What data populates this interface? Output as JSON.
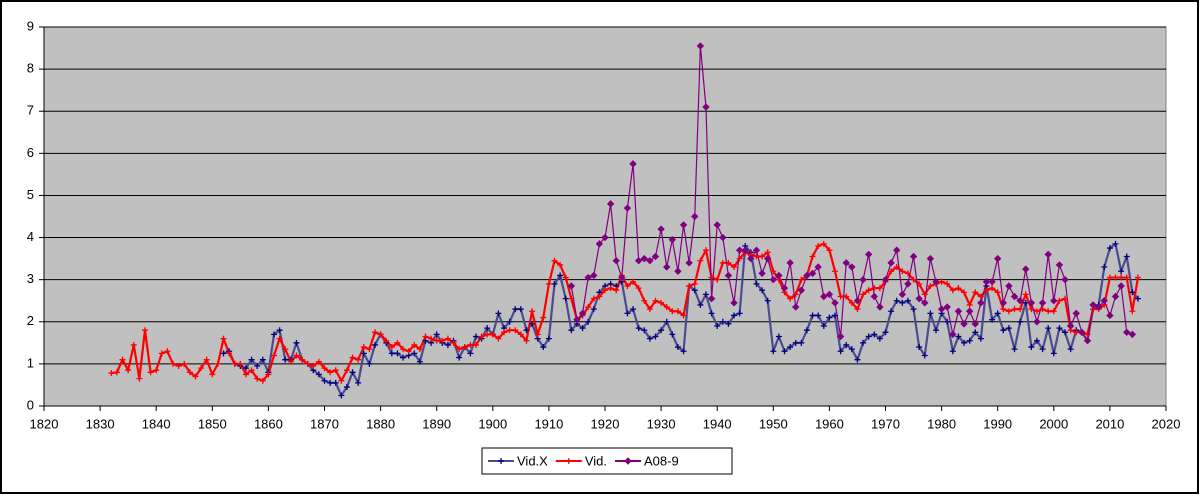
{
  "chart_data": {
    "type": "line",
    "xlim": [
      1820,
      2020
    ],
    "xticks": [
      1820,
      1830,
      1840,
      1850,
      1860,
      1870,
      1880,
      1890,
      1900,
      1910,
      1920,
      1930,
      1940,
      1950,
      1960,
      1970,
      1980,
      1990,
      2000,
      2010,
      2020
    ],
    "ylim": [
      0,
      9
    ],
    "yticks": [
      0,
      1,
      2,
      3,
      4,
      5,
      6,
      7,
      8,
      9
    ],
    "grid": true,
    "legend": "bottom",
    "series": [
      {
        "name": "Vid.X",
        "color": "#4b4b8f",
        "marker_color": "#000080",
        "marker": "plus",
        "x": [
          1852,
          1853,
          1854,
          1855,
          1856,
          1857,
          1858,
          1859,
          1860,
          1861,
          1862,
          1863,
          1864,
          1865,
          1866,
          1867,
          1868,
          1869,
          1870,
          1871,
          1872,
          1873,
          1874,
          1875,
          1876,
          1877,
          1878,
          1879,
          1880,
          1881,
          1882,
          1883,
          1884,
          1885,
          1886,
          1887,
          1888,
          1889,
          1890,
          1891,
          1892,
          1893,
          1894,
          1895,
          1896,
          1897,
          1898,
          1899,
          1900,
          1901,
          1902,
          1903,
          1904,
          1905,
          1906,
          1907,
          1908,
          1909,
          1910,
          1911,
          1912,
          1913,
          1914,
          1915,
          1916,
          1917,
          1918,
          1919,
          1920,
          1921,
          1922,
          1923,
          1924,
          1925,
          1926,
          1927,
          1928,
          1929,
          1930,
          1931,
          1932,
          1933,
          1934,
          1935,
          1936,
          1937,
          1938,
          1939,
          1940,
          1941,
          1942,
          1943,
          1944,
          1945,
          1946,
          1947,
          1948,
          1949,
          1950,
          1951,
          1952,
          1953,
          1954,
          1955,
          1956,
          1957,
          1958,
          1959,
          1960,
          1961,
          1962,
          1963,
          1964,
          1965,
          1966,
          1967,
          1968,
          1969,
          1970,
          1971,
          1972,
          1973,
          1974,
          1975,
          1976,
          1977,
          1978,
          1979,
          1980,
          1981,
          1982,
          1983,
          1984,
          1985,
          1986,
          1987,
          1988,
          1989,
          1990,
          1991,
          1992,
          1993,
          1994,
          1995,
          1996,
          1997,
          1998,
          1999,
          2000,
          2001,
          2002,
          2003,
          2004,
          2005,
          2006,
          2007,
          2008,
          2009,
          2010,
          2011,
          2012,
          2013,
          2014,
          2015
        ],
        "values": [
          1.25,
          1.3,
          1.0,
          0.95,
          0.9,
          1.1,
          0.95,
          1.1,
          0.8,
          1.7,
          1.8,
          1.1,
          1.1,
          1.5,
          1.1,
          1.0,
          0.85,
          0.75,
          0.6,
          0.55,
          0.55,
          0.25,
          0.45,
          0.8,
          0.55,
          1.25,
          1.0,
          1.45,
          1.7,
          1.5,
          1.25,
          1.25,
          1.15,
          1.2,
          1.25,
          1.05,
          1.55,
          1.5,
          1.7,
          1.5,
          1.45,
          1.55,
          1.15,
          1.4,
          1.25,
          1.65,
          1.6,
          1.85,
          1.7,
          2.2,
          1.85,
          2.0,
          2.3,
          2.3,
          1.8,
          1.95,
          1.6,
          1.4,
          1.6,
          2.9,
          3.1,
          2.55,
          1.8,
          1.95,
          1.85,
          2.0,
          2.3,
          2.7,
          2.85,
          2.9,
          2.85,
          2.95,
          2.2,
          2.3,
          1.85,
          1.8,
          1.6,
          1.65,
          1.8,
          2.0,
          1.7,
          1.4,
          1.3,
          2.85,
          2.75,
          2.4,
          2.65,
          2.2,
          1.9,
          2.0,
          1.95,
          2.15,
          2.2,
          3.8,
          3.65,
          2.9,
          2.75,
          2.5,
          1.3,
          1.65,
          1.3,
          1.4,
          1.5,
          1.5,
          1.8,
          2.15,
          2.15,
          1.9,
          2.1,
          2.15,
          1.3,
          1.45,
          1.35,
          1.1,
          1.5,
          1.65,
          1.7,
          1.6,
          1.75,
          2.25,
          2.5,
          2.45,
          2.5,
          2.3,
          1.4,
          1.2,
          2.2,
          1.8,
          2.2,
          2.0,
          1.3,
          1.65,
          1.5,
          1.55,
          1.75,
          1.6,
          2.85,
          2.05,
          2.2,
          1.8,
          1.85,
          1.35,
          2.0,
          2.45,
          1.4,
          1.55,
          1.35,
          1.85,
          1.25,
          1.85,
          1.75,
          1.35,
          1.8,
          1.75,
          1.55,
          2.3,
          2.4,
          3.3,
          3.75,
          3.85,
          3.2,
          3.55,
          2.7,
          2.55
        ]
      },
      {
        "name": "Vid.",
        "color": "#ff0000",
        "marker_color": "#ff0000",
        "marker": "plus",
        "x": [
          1832,
          1833,
          1834,
          1835,
          1836,
          1837,
          1838,
          1839,
          1840,
          1841,
          1842,
          1843,
          1844,
          1845,
          1846,
          1847,
          1848,
          1849,
          1850,
          1851,
          1852,
          1853,
          1854,
          1855,
          1856,
          1857,
          1858,
          1859,
          1860,
          1861,
          1862,
          1863,
          1864,
          1865,
          1866,
          1867,
          1868,
          1869,
          1870,
          1871,
          1872,
          1873,
          1874,
          1875,
          1876,
          1877,
          1878,
          1879,
          1880,
          1881,
          1882,
          1883,
          1884,
          1885,
          1886,
          1887,
          1888,
          1889,
          1890,
          1891,
          1892,
          1893,
          1894,
          1895,
          1896,
          1897,
          1898,
          1899,
          1900,
          1901,
          1902,
          1903,
          1904,
          1905,
          1906,
          1907,
          1908,
          1909,
          1910,
          1911,
          1912,
          1913,
          1914,
          1915,
          1916,
          1917,
          1918,
          1919,
          1920,
          1921,
          1922,
          1923,
          1924,
          1925,
          1926,
          1927,
          1928,
          1929,
          1930,
          1931,
          1932,
          1933,
          1934,
          1935,
          1936,
          1937,
          1938,
          1939,
          1940,
          1941,
          1942,
          1943,
          1944,
          1945,
          1946,
          1947,
          1948,
          1949,
          1950,
          1951,
          1952,
          1953,
          1954,
          1955,
          1956,
          1957,
          1958,
          1959,
          1960,
          1961,
          1962,
          1963,
          1964,
          1965,
          1966,
          1967,
          1968,
          1969,
          1970,
          1971,
          1972,
          1973,
          1974,
          1975,
          1976,
          1977,
          1978,
          1979,
          1980,
          1981,
          1982,
          1983,
          1984,
          1985,
          1986,
          1987,
          1988,
          1989,
          1990,
          1991,
          1992,
          1993,
          1994,
          1995,
          1996,
          1997,
          1998,
          1999,
          2000,
          2001,
          2002,
          2003,
          2004,
          2005,
          2006,
          2007,
          2008,
          2009,
          2010,
          2011,
          2012,
          2013,
          2014,
          2015
        ],
        "values": [
          0.78,
          0.8,
          1.1,
          0.85,
          1.45,
          0.65,
          1.8,
          0.8,
          0.85,
          1.25,
          1.3,
          1.0,
          0.95,
          1.0,
          0.8,
          0.7,
          0.9,
          1.1,
          0.75,
          1.0,
          1.6,
          1.25,
          1.0,
          1.0,
          0.75,
          0.85,
          0.65,
          0.6,
          0.75,
          1.2,
          1.6,
          1.35,
          1.05,
          1.2,
          1.1,
          1.0,
          0.95,
          1.05,
          0.9,
          0.8,
          0.85,
          0.6,
          0.85,
          1.15,
          1.1,
          1.4,
          1.35,
          1.75,
          1.7,
          1.55,
          1.4,
          1.5,
          1.35,
          1.3,
          1.45,
          1.35,
          1.65,
          1.6,
          1.55,
          1.55,
          1.6,
          1.5,
          1.35,
          1.4,
          1.45,
          1.45,
          1.65,
          1.7,
          1.7,
          1.6,
          1.75,
          1.8,
          1.8,
          1.7,
          1.55,
          2.25,
          1.7,
          2.1,
          2.9,
          3.45,
          3.35,
          3.05,
          2.55,
          2.05,
          2.15,
          2.35,
          2.55,
          2.6,
          2.75,
          2.8,
          2.75,
          3.1,
          2.85,
          2.95,
          2.8,
          2.5,
          2.3,
          2.5,
          2.45,
          2.35,
          2.25,
          2.25,
          2.15,
          2.85,
          2.9,
          3.45,
          3.7,
          3.05,
          3.0,
          3.4,
          3.4,
          3.3,
          3.5,
          3.65,
          3.6,
          3.55,
          3.55,
          3.65,
          3.2,
          3.0,
          2.7,
          2.55,
          2.65,
          3.0,
          3.1,
          3.55,
          3.8,
          3.85,
          3.7,
          3.2,
          2.6,
          2.6,
          2.45,
          2.3,
          2.65,
          2.75,
          2.8,
          2.8,
          2.95,
          3.2,
          3.3,
          3.2,
          3.15,
          3.0,
          2.9,
          2.65,
          2.85,
          2.9,
          2.95,
          2.9,
          2.75,
          2.8,
          2.7,
          2.4,
          2.7,
          2.6,
          2.75,
          2.8,
          2.7,
          2.3,
          2.25,
          2.3,
          2.3,
          2.65,
          2.3,
          2.25,
          2.3,
          2.25,
          2.25,
          2.5,
          2.55,
          1.8,
          1.75,
          1.75,
          1.7,
          2.3,
          2.3,
          2.4,
          3.05,
          3.05,
          3.05,
          3.05,
          2.25,
          3.05
        ]
      },
      {
        "name": "A08-9",
        "color": "#800080",
        "marker_color": "#800080",
        "marker": "diamond",
        "x": [
          1914,
          1915,
          1916,
          1917,
          1918,
          1919,
          1920,
          1921,
          1922,
          1923,
          1924,
          1925,
          1926,
          1927,
          1928,
          1929,
          1930,
          1931,
          1932,
          1933,
          1934,
          1935,
          1936,
          1937,
          1938,
          1939,
          1940,
          1941,
          1942,
          1943,
          1944,
          1945,
          1946,
          1947,
          1948,
          1949,
          1950,
          1951,
          1952,
          1953,
          1954,
          1955,
          1956,
          1957,
          1958,
          1959,
          1960,
          1961,
          1962,
          1963,
          1964,
          1965,
          1966,
          1967,
          1968,
          1969,
          1970,
          1971,
          1972,
          1973,
          1974,
          1975,
          1976,
          1977,
          1978,
          1979,
          1980,
          1981,
          1982,
          1983,
          1984,
          1985,
          1986,
          1987,
          1988,
          1989,
          1990,
          1991,
          1992,
          1993,
          1994,
          1995,
          1996,
          1997,
          1998,
          1999,
          2000,
          2001,
          2002,
          2003,
          2004,
          2005,
          2006,
          2007,
          2008,
          2009,
          2010,
          2011,
          2012,
          2013,
          2014
        ],
        "values": [
          2.85,
          2.05,
          2.2,
          3.05,
          3.1,
          3.85,
          4.0,
          4.8,
          3.45,
          3.05,
          4.7,
          5.75,
          3.45,
          3.5,
          3.45,
          3.55,
          4.2,
          3.3,
          3.95,
          3.2,
          4.3,
          3.4,
          4.5,
          8.55,
          7.1,
          2.55,
          4.3,
          4.0,
          3.1,
          2.45,
          3.7,
          3.7,
          3.5,
          3.7,
          3.15,
          3.5,
          3.0,
          3.1,
          2.8,
          3.4,
          2.35,
          2.75,
          3.1,
          3.15,
          3.3,
          2.6,
          2.65,
          2.45,
          1.65,
          3.4,
          3.3,
          2.5,
          3.0,
          3.6,
          2.6,
          2.35,
          3.0,
          3.4,
          3.7,
          2.65,
          2.9,
          3.55,
          2.55,
          2.45,
          3.5,
          2.95,
          2.3,
          2.35,
          1.7,
          2.25,
          1.95,
          2.25,
          1.95,
          2.45,
          2.95,
          2.95,
          3.5,
          2.45,
          2.85,
          2.6,
          2.5,
          3.25,
          2.45,
          2.0,
          2.45,
          3.6,
          2.5,
          3.35,
          3.0,
          1.9,
          2.2,
          1.75,
          1.55,
          2.4,
          2.35,
          2.5,
          2.15,
          2.6,
          2.85,
          1.75,
          1.7
        ]
      }
    ]
  }
}
